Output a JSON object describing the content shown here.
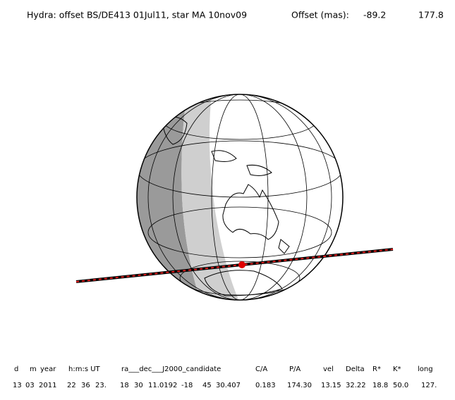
{
  "title": "Hydra: offset BS/DE413 01Jul11, star MA 10nov09",
  "offset_label": "Offset (mas):",
  "offset_values": [
    "-89.2",
    "177.8"
  ],
  "table": {
    "headers": [
      "d",
      "m",
      "year",
      "h:m:s UT",
      "ra___dec___J2000_candidate",
      "C/A",
      "P/A",
      "vel",
      "Delta",
      "R*",
      "K*",
      "long"
    ],
    "values": [
      "13",
      "03",
      "2011",
      "22",
      "36",
      "23.",
      "18",
      "30",
      "11.0192",
      "-18",
      "45",
      "30.407",
      "0.183",
      "174.30",
      "13.15",
      "32.22",
      "18.8",
      "50.0",
      "127."
    ]
  }
}
